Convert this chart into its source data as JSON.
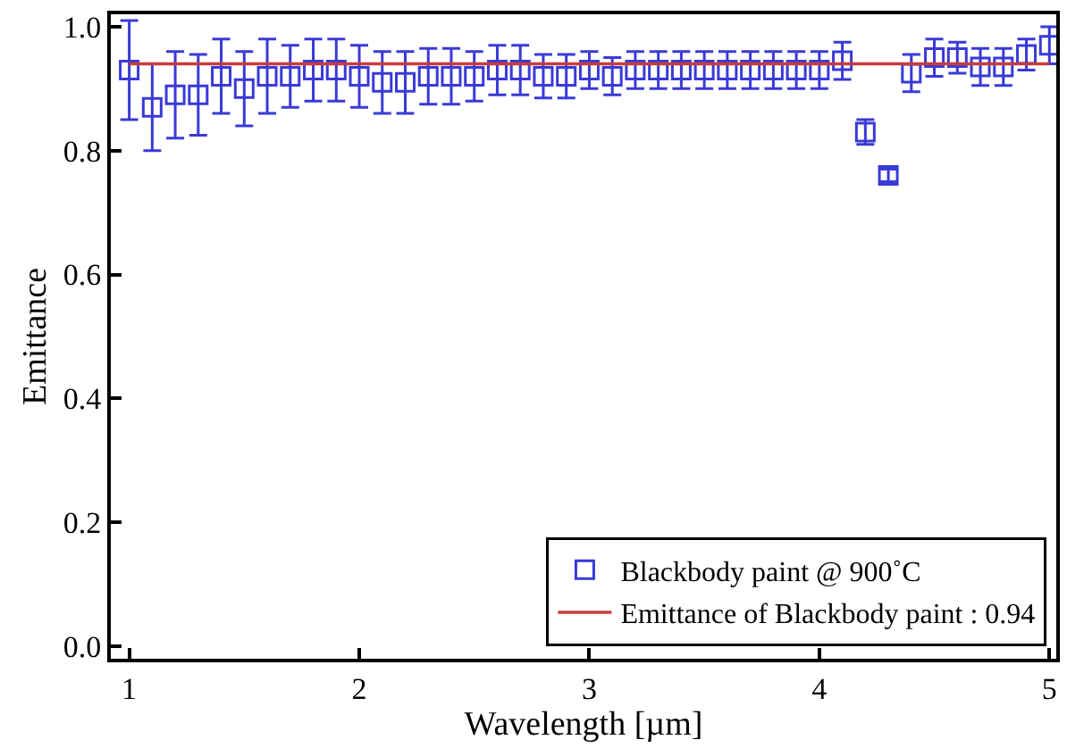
{
  "chart_data": {
    "type": "scatter",
    "xlabel": "Wavelength [µm]",
    "ylabel": "Emittance",
    "xlim": [
      0.92,
      5.03
    ],
    "ylim": [
      -0.02,
      1.02
    ],
    "xticks": [
      1,
      2,
      3,
      4,
      5
    ],
    "yticks": [
      {
        "value": 0,
        "label": "0.0"
      },
      0.2,
      0.4,
      0.6,
      0.8,
      {
        "value": 1,
        "label": "1.0"
      }
    ],
    "grid": false,
    "legend": "bottom right",
    "marker": "square",
    "series": [
      {
        "name": "Blackbody paint @ 900˚C",
        "color": "#3a3ad8",
        "x": [
          1.0,
          1.1,
          1.2,
          1.3,
          1.4,
          1.5,
          1.6,
          1.7,
          1.8,
          1.9,
          2.0,
          2.1,
          2.2,
          2.3,
          2.4,
          2.5,
          2.6,
          2.7,
          2.8,
          2.9,
          3.0,
          3.1,
          3.2,
          3.3,
          3.4,
          3.5,
          3.6,
          3.7,
          3.8,
          3.9,
          4.0,
          4.1,
          4.2,
          4.3,
          4.4,
          4.5,
          4.6,
          4.7,
          4.8,
          4.9,
          5.0
        ],
        "values": [
          0.93,
          0.87,
          0.89,
          0.89,
          0.92,
          0.9,
          0.92,
          0.92,
          0.93,
          0.93,
          0.92,
          0.91,
          0.91,
          0.92,
          0.92,
          0.92,
          0.93,
          0.93,
          0.92,
          0.92,
          0.93,
          0.92,
          0.93,
          0.93,
          0.93,
          0.93,
          0.93,
          0.93,
          0.93,
          0.93,
          0.93,
          0.945,
          0.83,
          0.76,
          0.925,
          0.95,
          0.95,
          0.935,
          0.935,
          0.955,
          0.97
        ],
        "errors": [
          0.08,
          0.07,
          0.07,
          0.065,
          0.06,
          0.06,
          0.06,
          0.05,
          0.05,
          0.05,
          0.05,
          0.05,
          0.05,
          0.045,
          0.045,
          0.04,
          0.04,
          0.04,
          0.035,
          0.035,
          0.03,
          0.03,
          0.03,
          0.03,
          0.03,
          0.03,
          0.03,
          0.03,
          0.03,
          0.03,
          0.03,
          0.03,
          0.02,
          0.01,
          0.03,
          0.03,
          0.025,
          0.03,
          0.03,
          0.025,
          0.03
        ]
      },
      {
        "name": "Emittance of Blackbody paint : 0.94",
        "type": "line",
        "color": "#c83c3c",
        "x": [
          1.0,
          5.0
        ],
        "values": [
          0.94,
          0.94
        ],
        "marker": "none",
        "line_style": "solid"
      }
    ]
  }
}
